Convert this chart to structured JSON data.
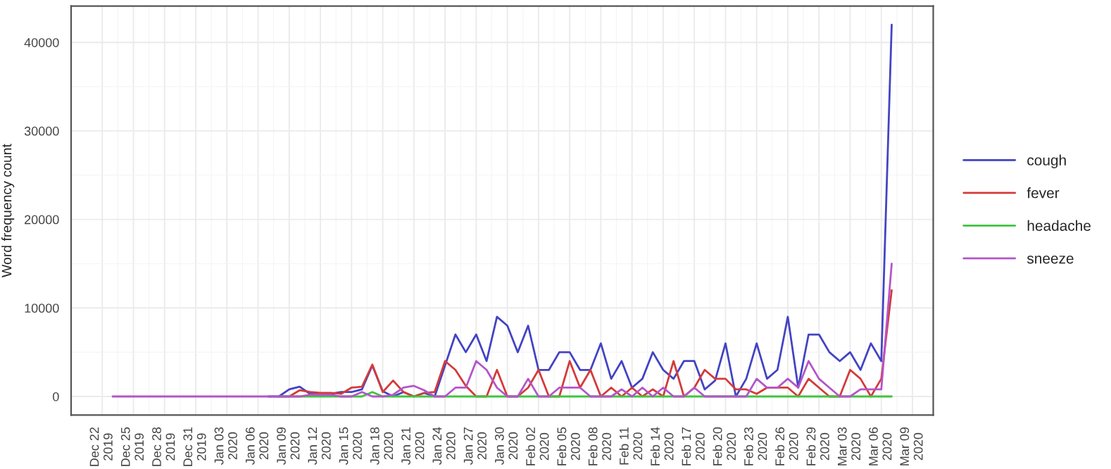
{
  "chart_data": {
    "type": "line",
    "ylabel": "Word frequency count",
    "x": [
      "2019-12-23",
      "2019-12-24",
      "2019-12-25",
      "2019-12-26",
      "2019-12-27",
      "2019-12-28",
      "2019-12-29",
      "2019-12-30",
      "2019-12-31",
      "2020-01-01",
      "2020-01-02",
      "2020-01-03",
      "2020-01-04",
      "2020-01-05",
      "2020-01-06",
      "2020-01-07",
      "2020-01-08",
      "2020-01-09",
      "2020-01-10",
      "2020-01-11",
      "2020-01-12",
      "2020-01-13",
      "2020-01-14",
      "2020-01-15",
      "2020-01-16",
      "2020-01-17",
      "2020-01-18",
      "2020-01-19",
      "2020-01-20",
      "2020-01-21",
      "2020-01-22",
      "2020-01-23",
      "2020-01-24",
      "2020-01-25",
      "2020-01-26",
      "2020-01-27",
      "2020-01-28",
      "2020-01-29",
      "2020-01-30",
      "2020-01-31",
      "2020-02-01",
      "2020-02-02",
      "2020-02-03",
      "2020-02-04",
      "2020-02-05",
      "2020-02-06",
      "2020-02-07",
      "2020-02-08",
      "2020-02-09",
      "2020-02-10",
      "2020-02-11",
      "2020-02-12",
      "2020-02-13",
      "2020-02-14",
      "2020-02-15",
      "2020-02-16",
      "2020-02-17",
      "2020-02-18",
      "2020-02-19",
      "2020-02-20",
      "2020-02-21",
      "2020-02-22",
      "2020-02-23",
      "2020-02-24",
      "2020-02-25",
      "2020-02-26",
      "2020-02-27",
      "2020-02-28",
      "2020-02-29",
      "2020-03-01",
      "2020-03-02",
      "2020-03-03",
      "2020-03-04",
      "2020-03-05",
      "2020-03-06",
      "2020-03-07"
    ],
    "series": [
      {
        "name": "cough",
        "color": "#4343c4",
        "values": [
          null,
          null,
          null,
          null,
          null,
          null,
          null,
          null,
          null,
          null,
          null,
          null,
          null,
          null,
          null,
          0,
          0,
          800,
          1100,
          300,
          300,
          300,
          500,
          500,
          800,
          3500,
          600,
          0,
          500,
          0,
          400,
          0,
          3500,
          7000,
          5000,
          7000,
          4000,
          9000,
          8000,
          5000,
          8000,
          3000,
          3000,
          5000,
          5000,
          3000,
          3000,
          6000,
          2000,
          4000,
          1000,
          2000,
          5000,
          3000,
          2000,
          4000,
          4000,
          800,
          1800,
          6000,
          0,
          2000,
          6000,
          2000,
          3000,
          9000,
          1000,
          7000,
          7000,
          5000,
          4000,
          5000,
          3000,
          6000,
          4000,
          42000
        ]
      },
      {
        "name": "fever",
        "color": "#d43a3a",
        "values": [
          null,
          null,
          null,
          null,
          null,
          null,
          null,
          null,
          null,
          null,
          null,
          null,
          null,
          null,
          null,
          null,
          0,
          0,
          700,
          500,
          400,
          400,
          300,
          1000,
          1100,
          3600,
          500,
          1800,
          500,
          0,
          400,
          500,
          4000,
          3000,
          1200,
          0,
          0,
          3000,
          0,
          0,
          1000,
          3000,
          0,
          0,
          4000,
          1000,
          3000,
          0,
          1000,
          0,
          1000,
          0,
          800,
          0,
          4000,
          0,
          1000,
          3000,
          2000,
          2000,
          800,
          800,
          300,
          1000,
          1000,
          1000,
          0,
          2000,
          1000,
          0,
          0,
          3000,
          2000,
          0,
          2000,
          12000
        ]
      },
      {
        "name": "headache",
        "color": "#3fc43f",
        "values": [
          null,
          null,
          null,
          null,
          null,
          null,
          null,
          null,
          null,
          null,
          null,
          null,
          null,
          null,
          null,
          null,
          0,
          0,
          0,
          0,
          0,
          0,
          0,
          0,
          0,
          500,
          0,
          0,
          0,
          0,
          0,
          0,
          0,
          0,
          0,
          0,
          0,
          0,
          0,
          0,
          0,
          0,
          0,
          0,
          0,
          0,
          0,
          0,
          0,
          0,
          0,
          0,
          0,
          0,
          0,
          0,
          0,
          0,
          0,
          0,
          0,
          0,
          0,
          0,
          0,
          0,
          0,
          0,
          0,
          0,
          0,
          0,
          0,
          0,
          0,
          0
        ]
      },
      {
        "name": "sneeze",
        "color": "#b455c8",
        "values": [
          0,
          0,
          0,
          0,
          0,
          0,
          0,
          0,
          0,
          0,
          0,
          0,
          0,
          0,
          0,
          0,
          0,
          0,
          0,
          200,
          200,
          200,
          0,
          0,
          500,
          0,
          0,
          200,
          1000,
          1200,
          700,
          0,
          0,
          1000,
          1000,
          4000,
          3000,
          1000,
          0,
          0,
          2000,
          0,
          0,
          1000,
          1000,
          1000,
          0,
          0,
          0,
          800,
          0,
          1000,
          0,
          1000,
          0,
          0,
          1000,
          0,
          0,
          0,
          0,
          0,
          2000,
          1000,
          1000,
          2000,
          1000,
          4000,
          2000,
          1000,
          0,
          0,
          800,
          800,
          800,
          15000
        ]
      }
    ],
    "xlim": [
      "2019-12-19",
      "2020-03-11"
    ],
    "xticks": [
      {
        "value": "2019-12-22",
        "label": "Dec 22\n2019"
      },
      {
        "value": "2019-12-25",
        "label": "Dec 25\n2019"
      },
      {
        "value": "2019-12-28",
        "label": "Dec 28\n2019"
      },
      {
        "value": "2019-12-31",
        "label": "Dec 31\n2019"
      },
      {
        "value": "2020-01-03",
        "label": "Jan 03\n2020"
      },
      {
        "value": "2020-01-06",
        "label": "Jan 06\n2020"
      },
      {
        "value": "2020-01-09",
        "label": "Jan 09\n2020"
      },
      {
        "value": "2020-01-12",
        "label": "Jan 12\n2020"
      },
      {
        "value": "2020-01-15",
        "label": "Jan 15\n2020"
      },
      {
        "value": "2020-01-18",
        "label": "Jan 18\n2020"
      },
      {
        "value": "2020-01-21",
        "label": "Jan 21\n2020"
      },
      {
        "value": "2020-01-24",
        "label": "Jan 24\n2020"
      },
      {
        "value": "2020-01-27",
        "label": "Jan 27\n2020"
      },
      {
        "value": "2020-01-30",
        "label": "Jan 30\n2020"
      },
      {
        "value": "2020-02-02",
        "label": "Feb 02\n2020"
      },
      {
        "value": "2020-02-05",
        "label": "Feb 05\n2020"
      },
      {
        "value": "2020-02-08",
        "label": "Feb 08\n2020"
      },
      {
        "value": "2020-02-11",
        "label": "Feb 11\n2020"
      },
      {
        "value": "2020-02-14",
        "label": "Feb 14\n2020"
      },
      {
        "value": "2020-02-17",
        "label": "Feb 17\n2020"
      },
      {
        "value": "2020-02-20",
        "label": "Feb 20\n2020"
      },
      {
        "value": "2020-02-23",
        "label": "Feb 23\n2020"
      },
      {
        "value": "2020-02-26",
        "label": "Feb 26\n2020"
      },
      {
        "value": "2020-02-29",
        "label": "Feb 29\n2020"
      },
      {
        "value": "2020-03-03",
        "label": "Mar 03\n2020"
      },
      {
        "value": "2020-03-06",
        "label": "Mar 06\n2020"
      },
      {
        "value": "2020-03-09",
        "label": "Mar 09\n2020"
      }
    ],
    "ylim": [
      -2100,
      44100
    ],
    "yticks": [
      0,
      10000,
      20000,
      30000,
      40000
    ],
    "grid": true,
    "legend": "right",
    "marker": "none",
    "line_style": "solid"
  }
}
